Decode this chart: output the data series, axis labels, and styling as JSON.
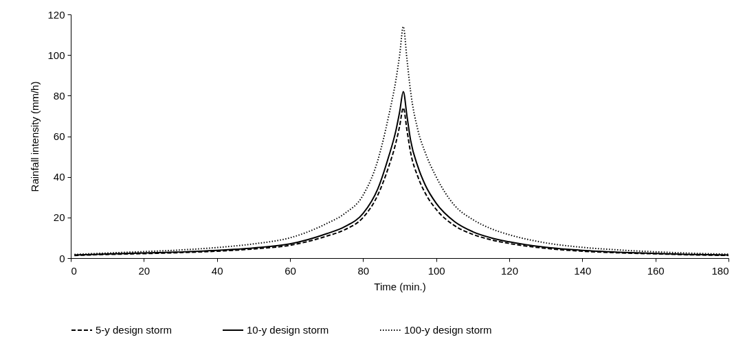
{
  "chart_data": {
    "type": "line",
    "xlabel": "Time (min.)",
    "ylabel": "Rainfall intensity (mm/h)",
    "x": [
      1,
      10,
      20,
      30,
      40,
      50,
      60,
      70,
      75,
      80,
      84,
      87,
      89,
      90,
      91,
      92,
      93,
      95,
      97,
      100,
      105,
      110,
      115,
      120,
      130,
      140,
      150,
      160,
      170,
      180
    ],
    "series": [
      {
        "name": "5-y design storm",
        "color": "#000000",
        "line_style": "dashed",
        "values": [
          1.3,
          1.8,
          2.2,
          2.7,
          3.4,
          4.5,
          6.3,
          10.8,
          14,
          20,
          31,
          45,
          57,
          65,
          74,
          63,
          52,
          40,
          32,
          24,
          16,
          11.7,
          9,
          7.2,
          4.8,
          3.4,
          2.6,
          2.1,
          1.6,
          1.3
        ]
      },
      {
        "name": "10-y design storm",
        "color": "#000000",
        "line_style": "solid",
        "values": [
          1.5,
          2.0,
          2.5,
          3.0,
          3.8,
          5.0,
          7.0,
          12,
          15.5,
          22,
          34,
          50,
          63,
          72,
          82,
          70,
          58,
          45,
          36,
          27,
          18,
          13,
          10,
          8,
          5.3,
          3.8,
          2.9,
          2.3,
          1.8,
          1.5
        ]
      },
      {
        "name": "100-y design storm",
        "color": "#000000",
        "line_style": "dotted",
        "values": [
          1.8,
          2.5,
          3.2,
          4.0,
          5.2,
          7.0,
          10,
          17,
          22,
          31,
          48,
          70,
          88,
          100,
          114,
          98,
          82,
          63,
          52,
          40,
          26,
          19,
          14.5,
          11.5,
          7.5,
          5.3,
          4.0,
          3.1,
          2.4,
          1.9
        ]
      }
    ],
    "xlim": [
      0,
      180
    ],
    "xticks": [
      0,
      20,
      40,
      60,
      80,
      100,
      120,
      140,
      160,
      180
    ],
    "ylim": [
      0,
      120
    ],
    "yticks": [
      0,
      20,
      40,
      60,
      80,
      100,
      120
    ],
    "grid": false,
    "legend": "bottom",
    "marker": "none"
  }
}
